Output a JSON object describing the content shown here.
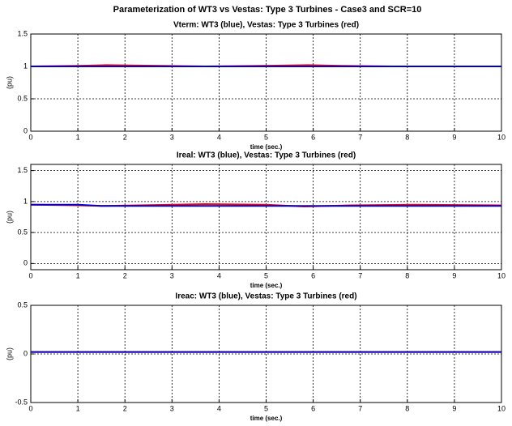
{
  "title": "Parameterization of WT3 vs Vestas: Type 3 Turbines - Case3 and SCR=10",
  "chart_data": [
    {
      "type": "line",
      "title": "Vterm: WT3 (blue), Vestas: Type 3 Turbines (red)",
      "x_label": "time (sec.)",
      "y_label": "(pu)",
      "x": [
        0,
        1,
        1.6,
        2.8,
        3.7,
        4.9,
        5.9,
        6.6,
        7.7,
        10
      ],
      "series": [
        {
          "name": "Vestas: Type 3 Turbines",
          "color": "#ff0000",
          "values": [
            1,
            1.01,
            1.02,
            1.01,
            1,
            1.01,
            1.02,
            1.01,
            1,
            1
          ]
        },
        {
          "name": "WT3",
          "color": "#0000cc",
          "values": [
            1,
            1,
            1,
            1,
            1,
            1,
            1,
            1,
            1,
            1
          ]
        }
      ],
      "xlim": [
        0,
        10
      ],
      "xticks": [
        0,
        1,
        2,
        3,
        4,
        5,
        6,
        7,
        8,
        9,
        10
      ],
      "ylim": [
        0,
        1.5
      ],
      "yticks": [
        0,
        0.5,
        1,
        1.5
      ],
      "grid": true
    },
    {
      "type": "line",
      "title": "Ireal: WT3 (blue), Vestas: Type 3 Turbines (red)",
      "x_label": "time (sec.)",
      "y_label": "(pu)",
      "x": [
        0,
        1,
        1.5,
        2.3,
        3.7,
        5,
        5.8,
        6.8,
        8.2,
        10
      ],
      "series": [
        {
          "name": "Vestas: Type 3 Turbines",
          "color": "#ff0000",
          "values": [
            0.95,
            0.94,
            0.93,
            0.94,
            0.96,
            0.95,
            0.92,
            0.94,
            0.95,
            0.94
          ]
        },
        {
          "name": "WT3",
          "color": "#0000cc",
          "values": [
            0.95,
            0.95,
            0.93,
            0.93,
            0.93,
            0.93,
            0.93,
            0.93,
            0.93,
            0.93
          ]
        }
      ],
      "xlim": [
        0,
        10
      ],
      "xticks": [
        0,
        1,
        2,
        3,
        4,
        5,
        6,
        7,
        8,
        9,
        10
      ],
      "ylim": [
        -0.1,
        1.6
      ],
      "yticks": [
        0,
        0.5,
        1,
        1.5
      ],
      "grid": true
    },
    {
      "type": "line",
      "title": "Ireac: WT3 (blue), Vestas: Type 3 Turbines (red)",
      "x_label": "time (sec.)",
      "y_label": "(pu)",
      "x": [
        0,
        10
      ],
      "series": [
        {
          "name": "Vestas: Type 3 Turbines",
          "color": "#ff0000",
          "values": [
            0.02,
            0.02
          ]
        },
        {
          "name": "WT3",
          "color": "#0000cc",
          "values": [
            0.02,
            0.02
          ]
        }
      ],
      "xlim": [
        0,
        10
      ],
      "xticks": [
        0,
        1,
        2,
        3,
        4,
        5,
        6,
        7,
        8,
        9,
        10
      ],
      "ylim": [
        -0.5,
        0.5
      ],
      "yticks": [
        -0.5,
        0,
        0.5
      ],
      "grid": true
    }
  ]
}
